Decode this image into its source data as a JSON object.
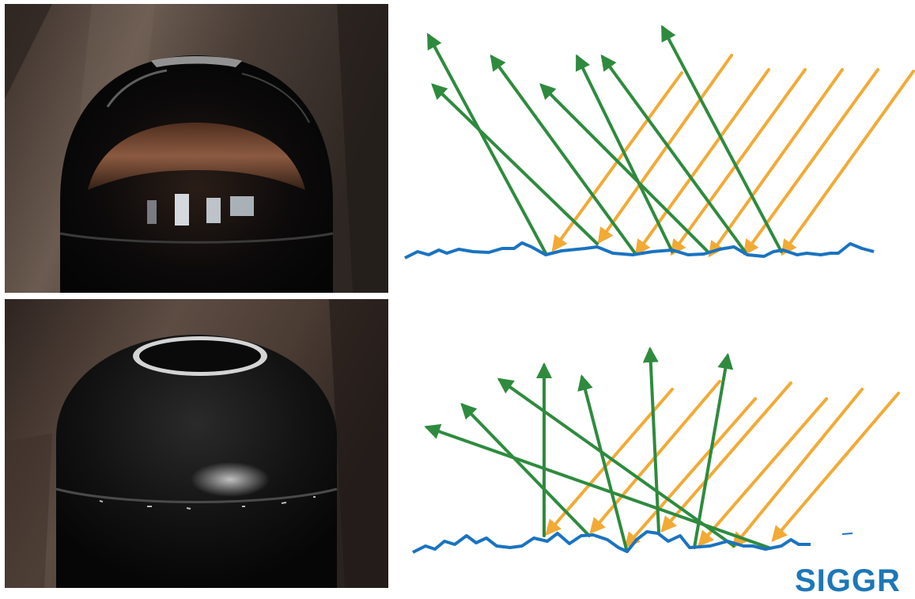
{
  "panels": [
    {
      "name": "smooth-surface",
      "photo": "glossy-black-dome-bin",
      "diagram": "specular-reflection"
    },
    {
      "name": "rough-surface",
      "photo": "matte-black-dome-bin",
      "diagram": "diffuse-reflection"
    }
  ],
  "colors": {
    "incident_ray": "#f2aa35",
    "reflected_ray": "#2e8b3e",
    "surface": "#1a73c0",
    "logo": "#1d77b8"
  },
  "logo": {
    "text": "SIGGR"
  }
}
